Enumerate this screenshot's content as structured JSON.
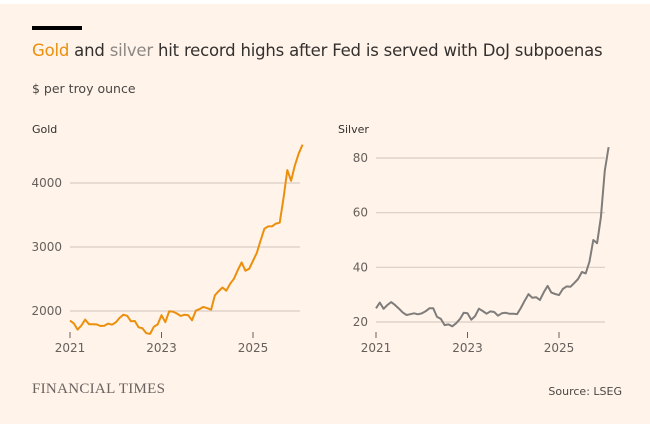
{
  "title": {
    "gold_word": "Gold",
    "and": " and ",
    "silver_word": "silver",
    "rest": " hit record highs after Fed is served with DoJ subpoenas"
  },
  "subtitle": "$ per troy ounce",
  "footer": {
    "brand": "FINANCIAL TIMES",
    "source": "Source: LSEG"
  },
  "chart_data": [
    {
      "type": "line",
      "title": "Gold",
      "color": "#eb8f0c",
      "x_start": 2021,
      "x_step_months": 1,
      "xticks": [
        2021,
        2023,
        2025
      ],
      "yticks": [
        2000,
        3000,
        4000
      ],
      "ylim": [
        1600,
        4650
      ],
      "xlim": [
        2021,
        2026.05
      ],
      "grid": "horizontal",
      "values": [
        1850,
        1800,
        1720,
        1760,
        1880,
        1780,
        1800,
        1790,
        1760,
        1780,
        1790,
        1800,
        1810,
        1900,
        1940,
        1920,
        1850,
        1830,
        1760,
        1720,
        1660,
        1640,
        1750,
        1800,
        1920,
        1840,
        1980,
        2000,
        1960,
        1920,
        1950,
        1920,
        1870,
        1990,
        2040,
        2060,
        2040,
        2030,
        2230,
        2330,
        2350,
        2330,
        2420,
        2500,
        2650,
        2740,
        2650,
        2640,
        2800,
        2900,
        3100,
        3300,
        3300,
        3350,
        3340,
        3400,
        3750,
        4200,
        4050,
        4250,
        4500,
        4600
      ]
    },
    {
      "type": "line",
      "title": "Silver",
      "color": "#7f7d7b",
      "x_start": 2021,
      "x_step_months": 1,
      "xticks": [
        2021,
        2023,
        2025
      ],
      "yticks": [
        20,
        40,
        60,
        80
      ],
      "ylim": [
        16,
        86
      ],
      "xlim": [
        2021,
        2026.05
      ],
      "grid": "horizontal",
      "values": [
        25,
        27,
        25,
        26,
        27.5,
        26,
        25,
        23.5,
        22.5,
        23,
        23,
        23,
        23,
        24,
        25,
        25,
        22,
        21,
        19,
        19,
        18.5,
        19.5,
        21,
        23.5,
        23,
        21,
        22,
        25,
        24,
        23,
        24,
        23.5,
        22.5,
        23,
        23.5,
        23,
        23,
        23,
        25,
        28,
        30,
        29,
        29,
        28,
        31,
        33,
        31,
        30,
        30,
        32,
        33,
        33,
        34,
        36,
        38,
        38,
        42,
        50,
        49,
        58,
        76,
        84
      ]
    }
  ]
}
